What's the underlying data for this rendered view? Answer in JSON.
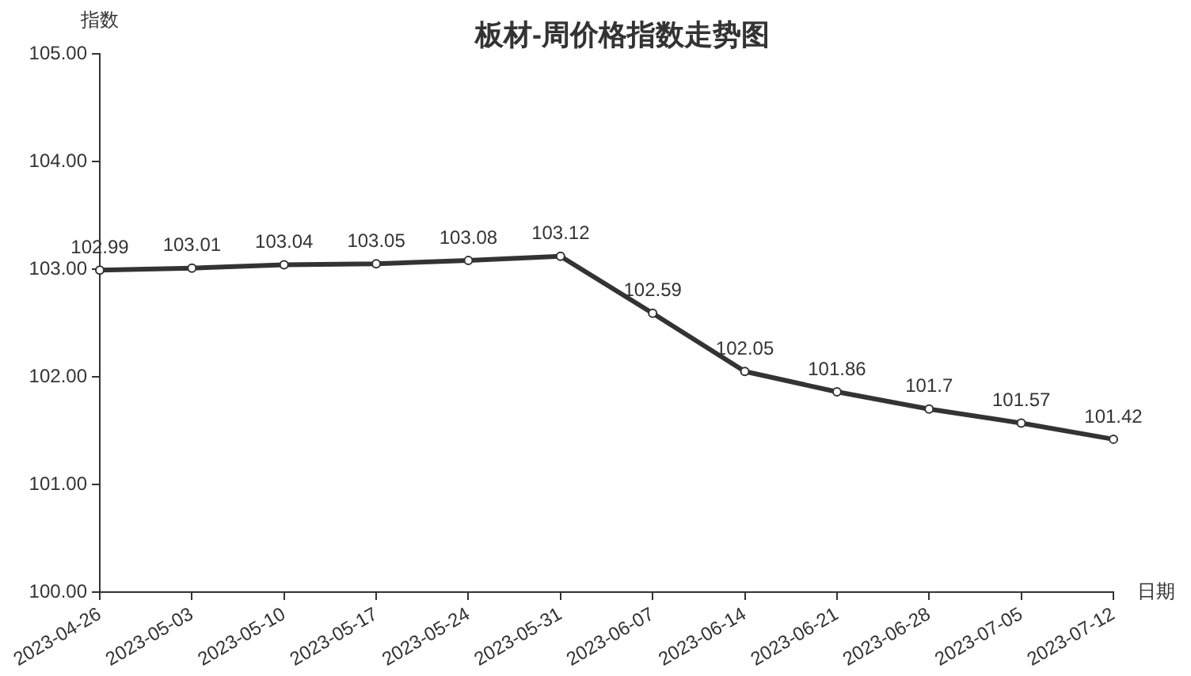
{
  "chart_data": {
    "type": "line",
    "title": "板材-周价格指数走势图",
    "xlabel": "日期",
    "ylabel": "指数",
    "categories": [
      "2023-04-26",
      "2023-05-03",
      "2023-05-10",
      "2023-05-17",
      "2023-05-24",
      "2023-05-31",
      "2023-06-07",
      "2023-06-14",
      "2023-06-21",
      "2023-06-28",
      "2023-07-05",
      "2023-07-12"
    ],
    "series": [
      {
        "color": "#333333",
        "values": [
          102.99,
          103.01,
          103.04,
          103.05,
          103.08,
          103.12,
          102.59,
          102.05,
          101.86,
          101.7,
          101.57,
          101.42
        ]
      }
    ],
    "ylim": [
      100,
      105
    ],
    "yticks": [
      {
        "value": 100,
        "label": "100.00"
      },
      {
        "value": 101,
        "label": "101.00"
      },
      {
        "value": 102,
        "label": "102.00"
      },
      {
        "value": 103,
        "label": "103.00"
      },
      {
        "value": 104,
        "label": "104.00"
      },
      {
        "value": 105,
        "label": "105.00"
      }
    ],
    "grid": false,
    "legend": false,
    "marker": "circle",
    "line_style": "solid",
    "data_labels": true
  }
}
